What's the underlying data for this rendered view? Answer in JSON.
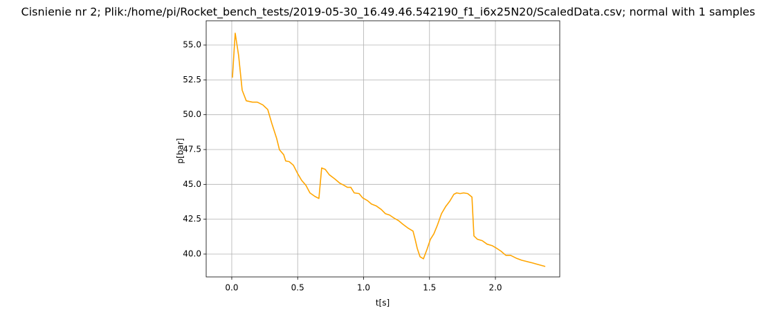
{
  "chart_data": {
    "type": "line",
    "title": "Cisnienie nr 2; Plik:/home/pi/Rocket_bench_tests/2019-05-30_16.49.46.542190_f1_i6x25N20/ScaledData.csv; normal with 1 samples",
    "x_label": "t[s]",
    "y_label": "p[bar]",
    "color": "#ffa500",
    "grid": true,
    "x": [
      0.005,
      0.026,
      0.052,
      0.079,
      0.11,
      0.157,
      0.194,
      0.236,
      0.273,
      0.304,
      0.341,
      0.362,
      0.394,
      0.409,
      0.436,
      0.467,
      0.499,
      0.53,
      0.562,
      0.593,
      0.63,
      0.661,
      0.682,
      0.709,
      0.74,
      0.782,
      0.819,
      0.85,
      0.877,
      0.903,
      0.929,
      0.966,
      0.992,
      1.029,
      1.06,
      1.097,
      1.134,
      1.165,
      1.197,
      1.228,
      1.265,
      1.297,
      1.339,
      1.375,
      1.391,
      1.407,
      1.428,
      1.454,
      1.48,
      1.507,
      1.533,
      1.559,
      1.591,
      1.622,
      1.654,
      1.685,
      1.706,
      1.732,
      1.759,
      1.79,
      1.822,
      1.837,
      1.864,
      1.9,
      1.937,
      1.974,
      2.01,
      2.042,
      2.079,
      2.115,
      2.157,
      2.199,
      2.241,
      2.283,
      2.32,
      2.378
    ],
    "values": [
      52.66,
      55.85,
      54.25,
      51.76,
      51.0,
      50.9,
      50.9,
      50.7,
      50.37,
      49.37,
      48.28,
      47.48,
      47.13,
      46.68,
      46.63,
      46.38,
      45.79,
      45.29,
      44.94,
      44.39,
      44.14,
      43.99,
      46.18,
      46.08,
      45.69,
      45.39,
      45.09,
      44.94,
      44.79,
      44.79,
      44.39,
      44.34,
      44.04,
      43.84,
      43.59,
      43.45,
      43.2,
      42.9,
      42.8,
      42.6,
      42.4,
      42.15,
      41.85,
      41.65,
      41.06,
      40.41,
      39.81,
      39.66,
      40.31,
      41.06,
      41.45,
      42.05,
      42.9,
      43.4,
      43.8,
      44.29,
      44.39,
      44.34,
      44.39,
      44.34,
      44.09,
      41.3,
      41.06,
      40.96,
      40.71,
      40.61,
      40.41,
      40.21,
      39.91,
      39.91,
      39.71,
      39.56,
      39.46,
      39.36,
      39.26,
      39.11
    ],
    "xlim": [
      -0.194,
      2.488
    ],
    "xticks": [
      {
        "value": 0,
        "label": "0.0"
      },
      0.5,
      {
        "value": 1,
        "label": "1.0"
      },
      1.5,
      {
        "value": 2,
        "label": "2.0"
      }
    ],
    "ylim": [
      38.36,
      56.74
    ],
    "yticks": [
      {
        "value": 40,
        "label": "40.0"
      },
      42.5,
      {
        "value": 45,
        "label": "45.0"
      },
      47.5,
      {
        "value": 50,
        "label": "50.0"
      },
      52.5,
      {
        "value": 55,
        "label": "55.0"
      }
    ]
  }
}
